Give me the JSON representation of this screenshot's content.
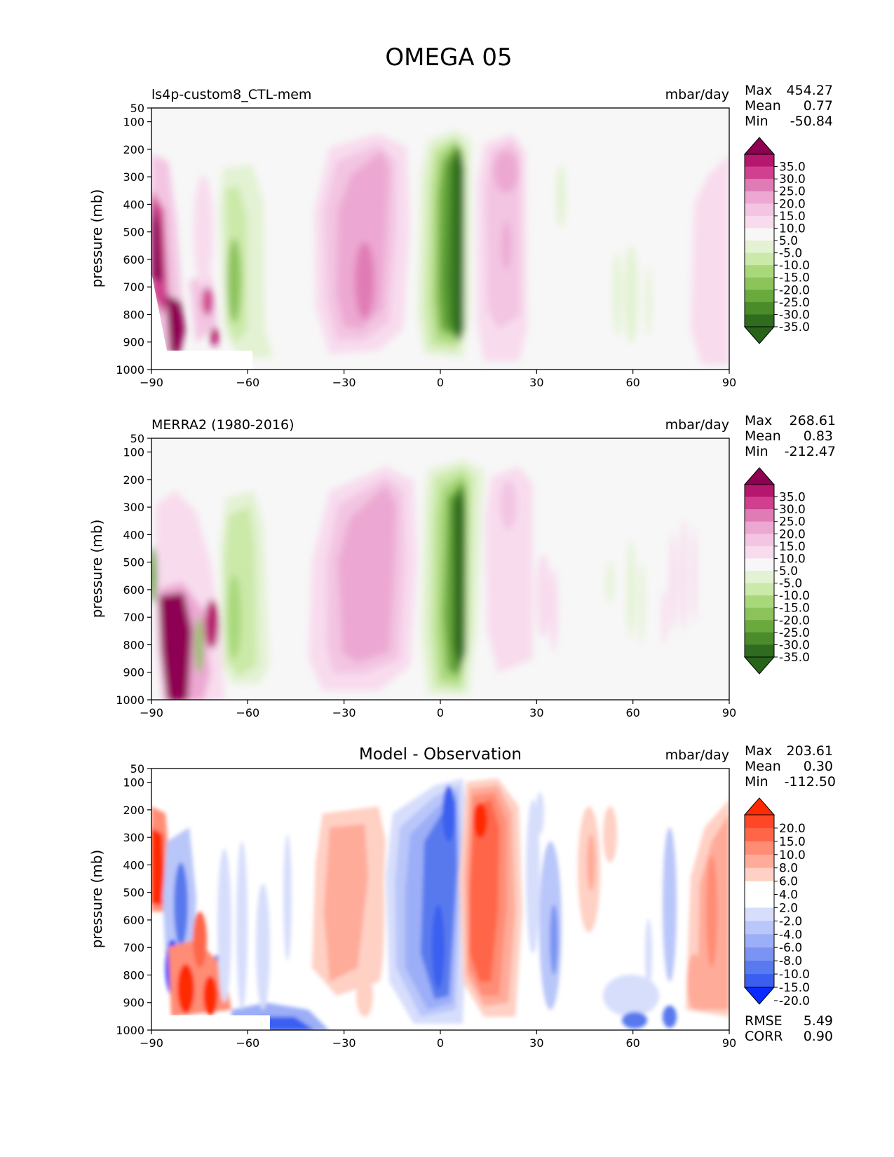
{
  "figure": {
    "title": "OMEGA 05",
    "ylabel": "pressure (mb)",
    "x_ticks": [
      "−90",
      "−60",
      "−30",
      "0",
      "30",
      "60",
      "90"
    ],
    "y_ticks": [
      "50",
      "100",
      "200",
      "300",
      "400",
      "500",
      "600",
      "700",
      "800",
      "900",
      "1000"
    ],
    "stat_labels": {
      "max": "Max",
      "mean": "Mean",
      "min": "Min",
      "rmse": "RMSE",
      "corr": "CORR"
    }
  },
  "colors": {
    "pink_scale": [
      "#8e0152",
      "#b7166e",
      "#d0408e",
      "#e07cb5",
      "#eca8d2",
      "#f3c5e2",
      "#f8dcee",
      "#f7f7f7",
      "#e3f2d3",
      "#cbe9a8",
      "#a9d87a",
      "#8cc35a",
      "#6aa93c",
      "#4a8c2a",
      "#2f6c1f",
      "#276419"
    ],
    "diff_scale": [
      "#ff2a00",
      "#ff4727",
      "#ff6648",
      "#ff8c74",
      "#ffab99",
      "#ffd0c4",
      "#ffffff",
      "#ffffff",
      "#d7defc",
      "#b9c6f9",
      "#9baef7",
      "#7b94f3",
      "#5979ee",
      "#3a5ef0",
      "#0a2bff"
    ]
  },
  "panels": [
    {
      "id": "model",
      "title_left": "ls4p-custom8_CTL-mem",
      "center_title": "",
      "units": "mbar/day",
      "stats": {
        "max": "454.27",
        "mean": "0.77",
        "min": "-50.84"
      },
      "colorbar_labels": [
        "35.0",
        "30.0",
        "25.0",
        "20.0",
        "15.0",
        "10.0",
        "5.0",
        "-5.0",
        "-10.0",
        "-15.0",
        "-20.0",
        "-25.0",
        "-30.0",
        "-35.0"
      ]
    },
    {
      "id": "obs",
      "title_left": "MERRA2 (1980-2016)",
      "center_title": "",
      "units": "mbar/day",
      "stats": {
        "max": "268.61",
        "mean": "0.83",
        "min": "-212.47"
      },
      "colorbar_labels": [
        "35.0",
        "30.0",
        "25.0",
        "20.0",
        "15.0",
        "10.0",
        "5.0",
        "-5.0",
        "-10.0",
        "-15.0",
        "-20.0",
        "-25.0",
        "-30.0",
        "-35.0"
      ]
    },
    {
      "id": "diff",
      "title_left": "",
      "center_title": "Model - Observation",
      "units": "mbar/day",
      "stats": {
        "max": "203.61",
        "mean": "0.30",
        "min": "-112.50"
      },
      "colorbar_labels": [
        "20.0",
        "15.0",
        "10.0",
        "8.0",
        "6.0",
        "4.0",
        "2.0",
        "-2.0",
        "-4.0",
        "-6.0",
        "-8.0",
        "-10.0",
        "-15.0",
        "-20.0"
      ],
      "rmse": "5.49",
      "corr": "0.90"
    }
  ],
  "chart_data": [
    {
      "type": "heatmap",
      "title": "ls4p-custom8_CTL-mem",
      "xlabel": "",
      "ylabel": "pressure (mb)",
      "units": "mbar/day",
      "xlim": [
        -90,
        90
      ],
      "ylim": [
        1000,
        50
      ],
      "features": [
        {
          "lat": -87,
          "p_top": 350,
          "p_bot": 930,
          "value": 40
        },
        {
          "lat": -63,
          "p_top": 330,
          "p_bot": 900,
          "value": -15
        },
        {
          "lat": -23,
          "p_top": 250,
          "p_bot": 880,
          "value": 20
        },
        {
          "lat": 5,
          "p_top": 200,
          "p_bot": 950,
          "value": -35
        },
        {
          "lat": 20,
          "p_top": 250,
          "p_bot": 870,
          "value": 15
        }
      ],
      "colorbar_levels": [
        35,
        30,
        25,
        20,
        15,
        10,
        5,
        -5,
        -10,
        -15,
        -20,
        -25,
        -30,
        -35
      ]
    },
    {
      "type": "heatmap",
      "title": "MERRA2 (1980-2016)",
      "xlabel": "",
      "ylabel": "pressure (mb)",
      "units": "mbar/day",
      "xlim": [
        -90,
        90
      ],
      "ylim": [
        1000,
        50
      ],
      "features": [
        {
          "lat": -83,
          "p_top": 700,
          "p_bot": 1000,
          "value": 40
        },
        {
          "lat": -63,
          "p_top": 350,
          "p_bot": 900,
          "value": -15
        },
        {
          "lat": -20,
          "p_top": 220,
          "p_bot": 900,
          "value": 15
        },
        {
          "lat": 5,
          "p_top": 200,
          "p_bot": 950,
          "value": -35
        },
        {
          "lat": 22,
          "p_top": 250,
          "p_bot": 850,
          "value": 10
        }
      ],
      "colorbar_levels": [
        35,
        30,
        25,
        20,
        15,
        10,
        5,
        -5,
        -10,
        -15,
        -20,
        -25,
        -30,
        -35
      ]
    },
    {
      "type": "heatmap",
      "title": "Model - Observation",
      "xlabel": "",
      "ylabel": "pressure (mb)",
      "units": "mbar/day",
      "xlim": [
        -90,
        90
      ],
      "ylim": [
        1000,
        50
      ],
      "features": [
        {
          "lat": -87,
          "p_top": 300,
          "p_bot": 650,
          "value": 20
        },
        {
          "lat": -80,
          "p_top": 700,
          "p_bot": 850,
          "value": -15
        },
        {
          "lat": -75,
          "p_top": 750,
          "p_bot": 950,
          "value": 15
        },
        {
          "lat": -35,
          "p_top": 250,
          "p_bot": 900,
          "value": 6
        },
        {
          "lat": -2,
          "p_top": 180,
          "p_bot": 950,
          "value": -10
        },
        {
          "lat": 13,
          "p_top": 180,
          "p_bot": 950,
          "value": 15
        },
        {
          "lat": 88,
          "p_top": 250,
          "p_bot": 950,
          "value": 8
        }
      ],
      "colorbar_levels": [
        20,
        15,
        10,
        8,
        6,
        4,
        2,
        -2,
        -4,
        -6,
        -8,
        -10,
        -15,
        -20
      ]
    }
  ]
}
